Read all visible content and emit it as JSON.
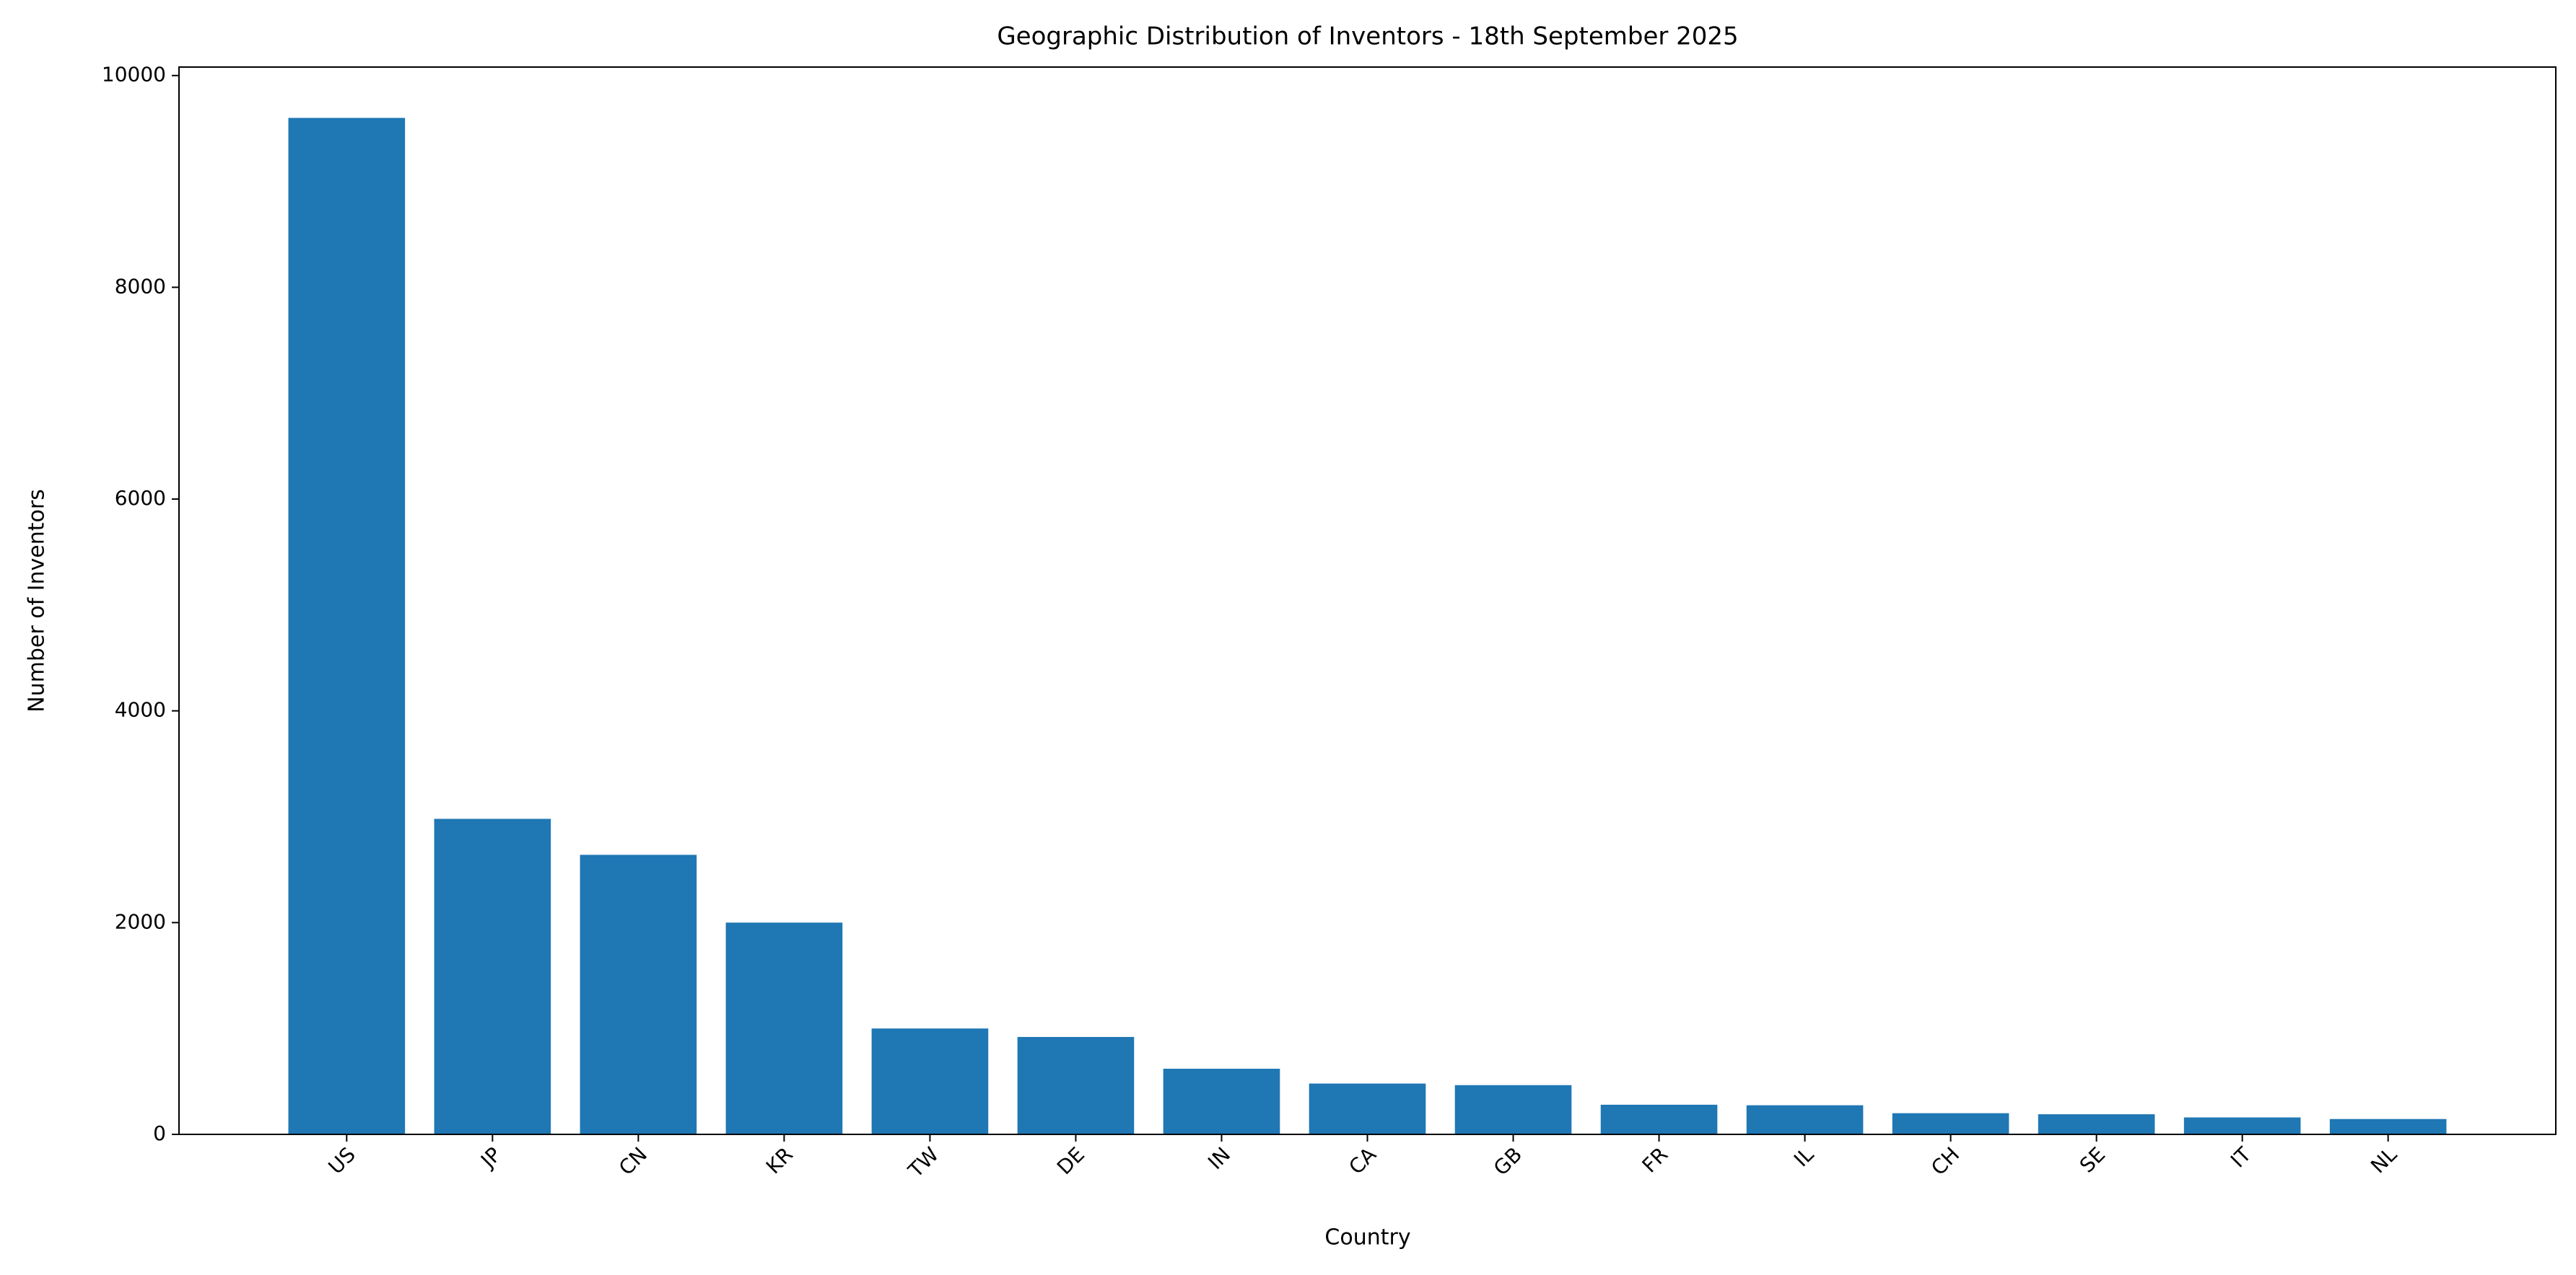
{
  "chart_data": {
    "type": "bar",
    "title": "Geographic Distribution of Inventors - 18th September 2025",
    "x_label": "Country",
    "y_label": "Number of Inventors",
    "categories": [
      "US",
      "JP",
      "CN",
      "KR",
      "TW",
      "DE",
      "IN",
      "CA",
      "GB",
      "FR",
      "IL",
      "CH",
      "SE",
      "IT",
      "NL"
    ],
    "values": [
      9600,
      2980,
      2640,
      2000,
      1000,
      920,
      620,
      480,
      465,
      280,
      275,
      200,
      190,
      160,
      145
    ],
    "color": "#1f77b4",
    "ylim": [
      0,
      10080
    ],
    "yticks": [
      0,
      2000,
      4000,
      6000,
      8000,
      10000
    ],
    "grid": false
  }
}
